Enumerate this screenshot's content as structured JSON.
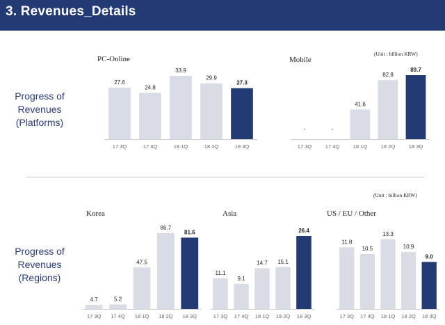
{
  "header": {
    "title": "3. Revenues_Details"
  },
  "sections": {
    "platforms": {
      "label_lines": [
        "Progress of",
        "Revenues",
        "(Platforms)"
      ]
    },
    "regions": {
      "label_lines": [
        "Progress of",
        "Revenues",
        "(Regions)"
      ]
    }
  },
  "units": {
    "platforms": "(Unit : billion KRW)",
    "regions": "(Unit : billion KRW)"
  },
  "colors": {
    "header": "#233a75",
    "bar_default": "#d9dce4",
    "bar_highlight": "#233a75"
  },
  "chart_data": [
    {
      "id": "pc-online",
      "type": "bar",
      "title": "PC-Online",
      "categories": [
        "17 3Q",
        "17 4Q",
        "18 1Q",
        "18 2Q",
        "18 3Q"
      ],
      "values": [
        27.6,
        24.8,
        33.9,
        29.9,
        27.3
      ],
      "value_labels": [
        "27.6",
        "24.8",
        "33.9",
        "29.9",
        "27.3"
      ],
      "highlight_index": 4,
      "ylim": [
        0,
        40
      ]
    },
    {
      "id": "mobile",
      "type": "bar",
      "title": "Mobile",
      "categories": [
        "17 3Q",
        "17 4Q",
        "18 1Q",
        "18 2Q",
        "18 3Q"
      ],
      "values": [
        0,
        0,
        41.6,
        82.8,
        89.7
      ],
      "value_labels": [
        "-",
        "-",
        "41.6",
        "82.8",
        "89.7"
      ],
      "highlight_index": 4,
      "ylim": [
        0,
        100
      ]
    },
    {
      "id": "korea",
      "type": "bar",
      "title": "Korea",
      "categories": [
        "17 3Q",
        "17 4Q",
        "18 1Q",
        "18 2Q",
        "18 3Q"
      ],
      "values": [
        4.7,
        5.2,
        47.5,
        86.7,
        81.6
      ],
      "value_labels": [
        "4.7",
        "5.2",
        "47.5",
        "86.7",
        "81.6"
      ],
      "highlight_index": 4,
      "ylim": [
        0,
        100
      ]
    },
    {
      "id": "asia",
      "type": "bar",
      "title": "Asia",
      "categories": [
        "17 3Q",
        "17 4Q",
        "18 1Q",
        "18 2Q",
        "18 3Q"
      ],
      "values": [
        11.1,
        9.1,
        14.7,
        15.1,
        26.4
      ],
      "value_labels": [
        "11.1",
        "9.1",
        "14.7",
        "15.1",
        "26.4"
      ],
      "highlight_index": 4,
      "ylim": [
        0,
        30
      ]
    },
    {
      "id": "us-eu-other",
      "type": "bar",
      "title": "US / EU / Other",
      "categories": [
        "17 3Q",
        "17 4Q",
        "18 1Q",
        "18 2Q",
        "18 3Q"
      ],
      "values": [
        11.8,
        10.5,
        13.3,
        10.9,
        9.0
      ],
      "value_labels": [
        "11.8",
        "10.5",
        "13.3",
        "10.9",
        "9.0"
      ],
      "highlight_index": 4,
      "ylim": [
        0,
        15
      ]
    }
  ]
}
